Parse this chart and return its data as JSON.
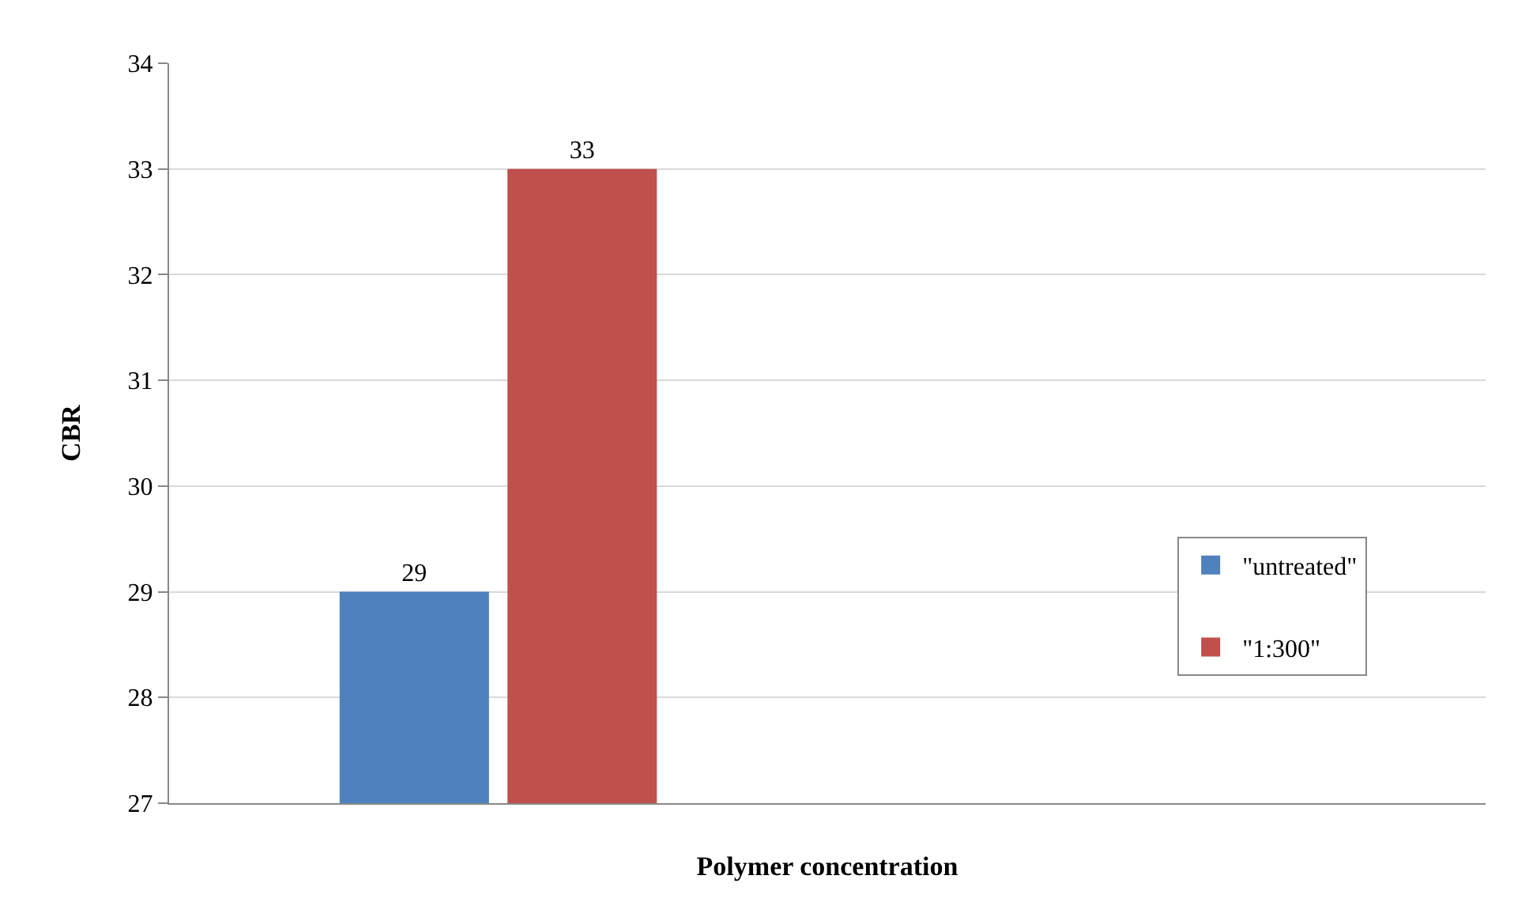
{
  "chart_data": {
    "type": "bar",
    "xlabel": "Polymer concentration",
    "ylabel": "CBR",
    "categories": [
      null
    ],
    "series": [
      {
        "name": "\"untreated\"",
        "color": "#4f81bd",
        "values": [
          29
        ]
      },
      {
        "name": "\"1:300\"",
        "color": "#c0504d",
        "values": [
          33
        ]
      }
    ],
    "ylim": [
      27,
      34
    ],
    "yticks": [
      27,
      28,
      29,
      30,
      31,
      32,
      33,
      34
    ],
    "grid": "y",
    "legend": "right",
    "data_labels": true
  }
}
